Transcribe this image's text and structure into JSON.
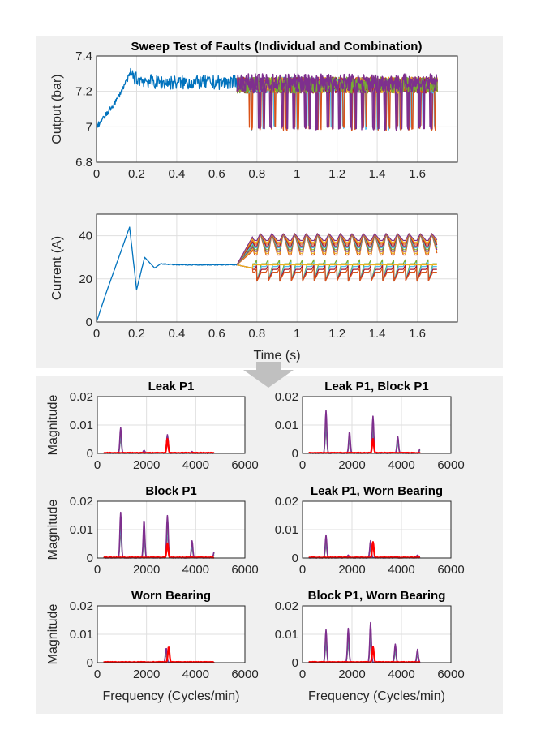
{
  "figure_title": "Sweep Test of Faults (Individual and Combination)",
  "colors": {
    "panel_bg": "#f0f0f0",
    "nominal": "#0072BD",
    "fault_palette": [
      "#D95319",
      "#EDB120",
      "#7E2F8E",
      "#77AC30",
      "#4DBEEE",
      "#A2142F"
    ],
    "spectrum_fault": "#7E2F8E",
    "spectrum_nominal": "#FF0000",
    "arrow": "#c0c0c0"
  },
  "chart_data": [
    {
      "id": "output",
      "type": "line",
      "title": "Sweep Test of Faults (Individual and Combination)",
      "xlabel": "",
      "ylabel": "Output (bar)",
      "xlim": [
        0,
        1.8
      ],
      "ylim": [
        6.8,
        7.4
      ],
      "xticks": [
        "0",
        "0.2",
        "0.4",
        "0.6",
        "0.8",
        "1",
        "1.2",
        "1.4",
        "1.6"
      ],
      "yticks": [
        "6.8",
        "7",
        "7.2",
        "7.4"
      ],
      "grid": true,
      "nominal": {
        "x": [
          0,
          0.05,
          0.1,
          0.15,
          0.17,
          0.2,
          0.3,
          0.4,
          0.5,
          0.6,
          0.7
        ],
        "y": [
          7.0,
          7.07,
          7.15,
          7.26,
          7.3,
          7.27,
          7.25,
          7.25,
          7.25,
          7.25,
          7.25
        ]
      },
      "fault_sweep": {
        "x_range": [
          0.7,
          1.7
        ],
        "upper": 7.3,
        "lower_normal": 7.15,
        "dip_min": 6.98,
        "dip_period_s": 0.057
      }
    },
    {
      "id": "current",
      "type": "line",
      "title": "",
      "xlabel": "Time (s)",
      "ylabel": "Current (A)",
      "xlim": [
        0,
        1.8
      ],
      "ylim": [
        0,
        50
      ],
      "xticks": [
        "0",
        "0.2",
        "0.4",
        "0.6",
        "0.8",
        "1",
        "1.2",
        "1.4",
        "1.6"
      ],
      "yticks": [
        "0",
        "20",
        "40"
      ],
      "grid": true,
      "nominal": {
        "x": [
          0,
          0.05,
          0.1,
          0.165,
          0.2,
          0.24,
          0.29,
          0.32,
          0.4,
          0.7
        ],
        "y": [
          0,
          14,
          27,
          44,
          15,
          30,
          25,
          27,
          26.5,
          26.5
        ]
      },
      "fault_sweep": {
        "x_range": [
          0.7,
          1.7
        ],
        "upper_band": [
          30,
          41
        ],
        "lower_band": [
          19,
          28
        ],
        "period_s": 0.057
      }
    },
    {
      "id": "s1",
      "type": "line",
      "title": "Leak P1",
      "xlabel": "",
      "ylabel": "Magnitude",
      "xlim": [
        0,
        6000
      ],
      "ylim": [
        0,
        0.02
      ],
      "xticks": [
        "0",
        "2000",
        "4000",
        "6000"
      ],
      "yticks": [
        "0",
        "0.01",
        "0.02"
      ],
      "grid": true,
      "fault_peaks": [
        [
          950,
          0.009
        ],
        [
          1900,
          0.001
        ],
        [
          2850,
          0.0065
        ],
        [
          3850,
          0.0005
        ]
      ],
      "nominal_peaks": [
        [
          2850,
          0.005
        ]
      ],
      "x_data_range": [
        250,
        4750
      ]
    },
    {
      "id": "s2",
      "type": "line",
      "title": "Leak P1, Block P1",
      "xlabel": "",
      "ylabel": "",
      "xlim": [
        0,
        6000
      ],
      "ylim": [
        0,
        0.02
      ],
      "xticks": [
        "0",
        "2000",
        "4000",
        "6000"
      ],
      "yticks": [
        "0",
        "0.01",
        "0.02"
      ],
      "grid": true,
      "fault_peaks": [
        [
          950,
          0.015
        ],
        [
          1900,
          0.0075
        ],
        [
          2850,
          0.013
        ],
        [
          3850,
          0.006
        ],
        [
          4750,
          0.0015
        ]
      ],
      "nominal_peaks": [
        [
          2850,
          0.005
        ]
      ],
      "x_data_range": [
        250,
        4750
      ]
    },
    {
      "id": "s3",
      "type": "line",
      "title": "Block P1",
      "xlabel": "",
      "ylabel": "Magnitude",
      "xlim": [
        0,
        6000
      ],
      "ylim": [
        0,
        0.02
      ],
      "xticks": [
        "0",
        "2000",
        "4000",
        "6000"
      ],
      "yticks": [
        "0",
        "0.01",
        "0.02"
      ],
      "grid": true,
      "fault_peaks": [
        [
          950,
          0.016
        ],
        [
          1900,
          0.0135
        ],
        [
          2850,
          0.0148
        ],
        [
          3850,
          0.006
        ],
        [
          4750,
          0.002
        ]
      ],
      "nominal_peaks": [
        [
          2850,
          0.005
        ]
      ],
      "x_data_range": [
        250,
        4750
      ]
    },
    {
      "id": "s4",
      "type": "line",
      "title": "Leak P1, Worn Bearing",
      "xlabel": "",
      "ylabel": "",
      "xlim": [
        0,
        6000
      ],
      "ylim": [
        0,
        0.02
      ],
      "xticks": [
        "0",
        "2000",
        "4000",
        "6000"
      ],
      "yticks": [
        "0",
        "0.01",
        "0.02"
      ],
      "grid": true,
      "fault_peaks": [
        [
          950,
          0.008
        ],
        [
          1850,
          0.001
        ],
        [
          2750,
          0.006
        ],
        [
          3750,
          0.0005
        ],
        [
          4650,
          0.001
        ]
      ],
      "nominal_peaks": [
        [
          2850,
          0.0055
        ]
      ],
      "x_data_range": [
        250,
        4750
      ]
    },
    {
      "id": "s5",
      "type": "line",
      "title": "Worn Bearing",
      "xlabel": "Frequency (Cycles/min)",
      "ylabel": "Magnitude",
      "xlim": [
        0,
        6000
      ],
      "ylim": [
        0,
        0.02
      ],
      "xticks": [
        "0",
        "2000",
        "4000",
        "6000"
      ],
      "yticks": [
        "0",
        "0.01",
        "0.02"
      ],
      "grid": true,
      "fault_peaks": [
        [
          2800,
          0.005
        ]
      ],
      "nominal_peaks": [
        [
          2900,
          0.0055
        ]
      ],
      "x_data_range": [
        250,
        4750
      ]
    },
    {
      "id": "s6",
      "type": "line",
      "title": "Block P1, Worn Bearing",
      "xlabel": "Frequency (Cycles/min)",
      "ylabel": "",
      "xlim": [
        0,
        6000
      ],
      "ylim": [
        0,
        0.02
      ],
      "xticks": [
        "0",
        "2000",
        "4000",
        "6000"
      ],
      "yticks": [
        "0",
        "0.01",
        "0.02"
      ],
      "grid": true,
      "fault_peaks": [
        [
          950,
          0.0115
        ],
        [
          1850,
          0.012
        ],
        [
          2750,
          0.014
        ],
        [
          3750,
          0.0065
        ],
        [
          4650,
          0.0045
        ]
      ],
      "nominal_peaks": [
        [
          2850,
          0.0055
        ]
      ],
      "x_data_range": [
        250,
        4750
      ]
    }
  ]
}
